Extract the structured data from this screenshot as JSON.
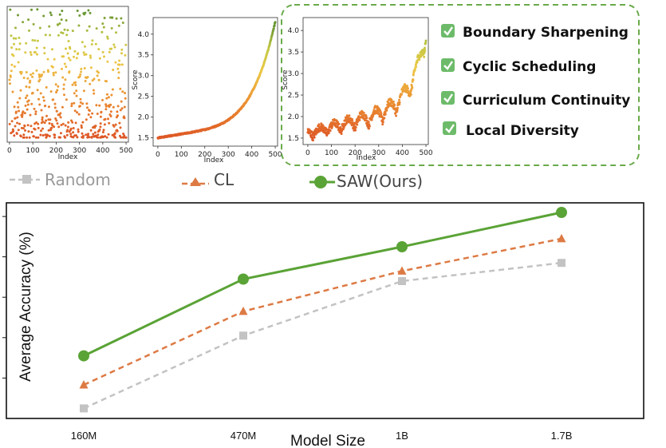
{
  "colors": {
    "random": "#c3c3c3",
    "cl": "#dd7a44",
    "saw": "#5aa336",
    "dashed_box": "#6aaa4a",
    "check_bg": "#6dbb6a"
  },
  "legend": {
    "random": "Random",
    "cl": "CL",
    "saw": "SAW(Ours)"
  },
  "features": [
    "Boundary Sharpening",
    "Cyclic Scheduling",
    "Curriculum Continuity",
    "Local Diversity"
  ],
  "chart_data": [
    {
      "type": "scatter",
      "panel": "random-order",
      "xlabel": "Index",
      "ylabel": "",
      "xticks": [
        0,
        100,
        200,
        300,
        400,
        500
      ],
      "yticks": [],
      "xlim": [
        -10,
        510
      ],
      "ylim": [
        1.35,
        4.35
      ],
      "series": [
        {
          "x_range": [
            0,
            500
          ],
          "y_range": [
            1.45,
            4.3
          ],
          "distribution": "random",
          "count": 500
        }
      ]
    },
    {
      "type": "scatter",
      "panel": "sorted-order",
      "xlabel": "Index",
      "ylabel": "Score",
      "xticks": [
        0,
        100,
        200,
        300,
        400,
        500
      ],
      "yticks": [
        1.5,
        2.0,
        2.5,
        3.0,
        3.5,
        4.0
      ],
      "xlim": [
        -20,
        510
      ],
      "ylim": [
        1.3,
        4.4
      ],
      "series": [
        {
          "x_range": [
            0,
            500
          ],
          "y_range": [
            1.5,
            4.3
          ],
          "distribution": "sorted-increasing",
          "count": 500
        }
      ]
    },
    {
      "type": "scatter",
      "panel": "saw-order",
      "xlabel": "Index",
      "ylabel": "Score",
      "xticks": [
        0,
        100,
        200,
        300,
        400,
        500
      ],
      "yticks": [
        1.5,
        2.0,
        2.5,
        3.0,
        3.5,
        4.0
      ],
      "xlim": [
        -20,
        510
      ],
      "ylim": [
        1.35,
        4.3
      ],
      "series": [
        {
          "x_range": [
            0,
            500
          ],
          "y_range": [
            1.5,
            4.2
          ],
          "distribution": "cyclic-increasing",
          "count": 500
        }
      ]
    },
    {
      "type": "line",
      "panel": "accuracy-vs-size",
      "xlabel": "Model Size",
      "ylabel": "Average Accuracy (%)",
      "categories": [
        "160M",
        "470M",
        "1B",
        "1.7B"
      ],
      "ylim": [
        0,
        10
      ],
      "grid": false,
      "series": [
        {
          "name": "Random",
          "values": [
            0.25,
            2.05,
            3.4,
            3.85
          ],
          "marker": "square",
          "dash": true
        },
        {
          "name": "CL",
          "values": [
            0.83,
            2.65,
            3.65,
            4.45
          ],
          "marker": "triangle",
          "dash": true
        },
        {
          "name": "SAW(Ours)",
          "values": [
            1.55,
            3.45,
            4.25,
            5.1
          ],
          "marker": "circle",
          "dash": false
        }
      ]
    }
  ]
}
